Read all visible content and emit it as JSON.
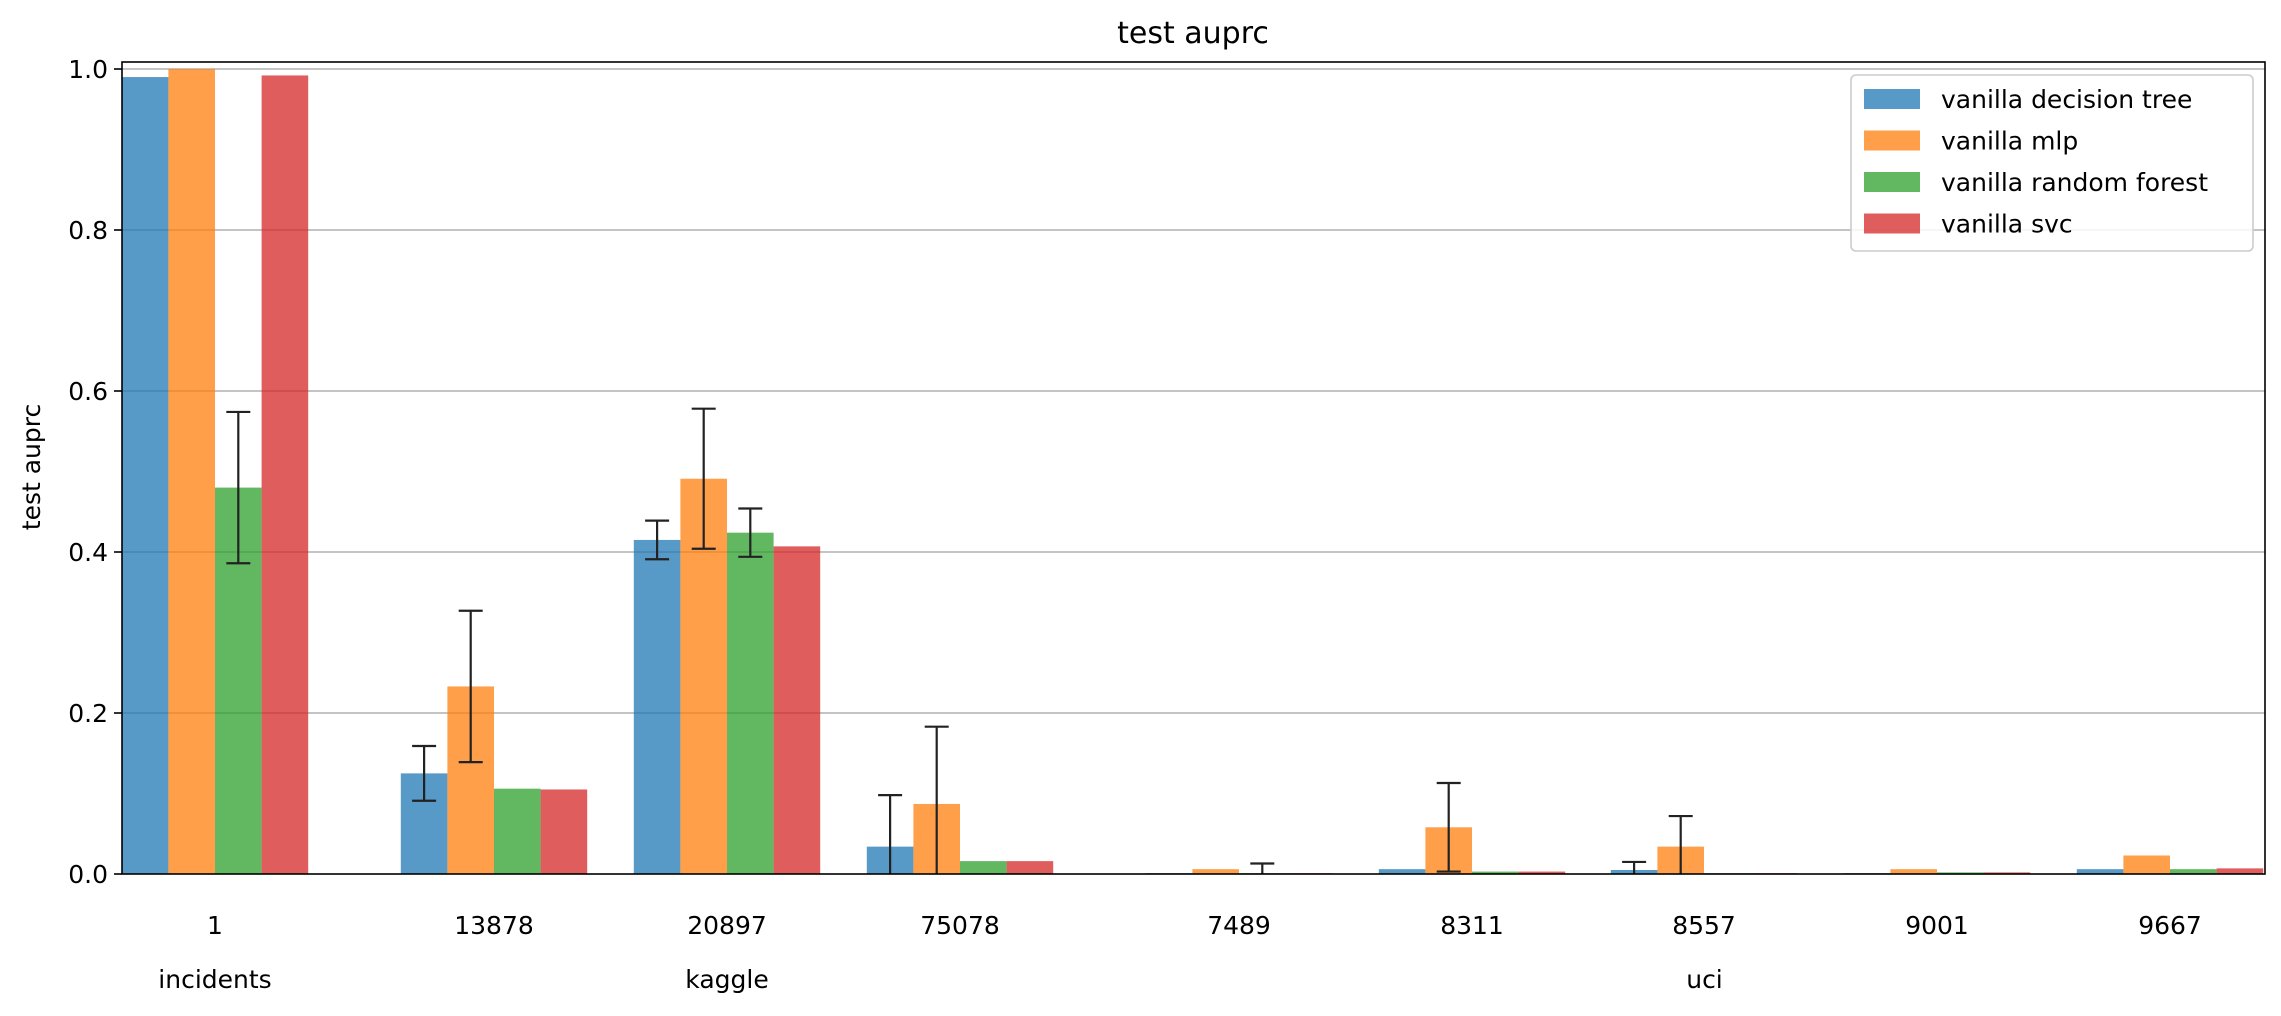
{
  "chart_data": {
    "type": "bar",
    "title": "test auprc",
    "ylabel": "test auprc",
    "xlabel": "",
    "ylim": [
      0,
      1.0
    ],
    "yticks": [
      "0.0",
      "0.2",
      "0.4",
      "0.6",
      "0.8",
      "1.0"
    ],
    "grid": "horizontal",
    "legend_position": "top-right",
    "categories": [
      "1",
      "13878",
      "20897",
      "75078",
      "7489",
      "8311",
      "8557",
      "9001",
      "9667"
    ],
    "groups": [
      {
        "label": "incidents",
        "from": 0,
        "to": 0
      },
      {
        "label": "kaggle",
        "from": 1,
        "to": 3
      },
      {
        "label": "uci",
        "from": 4,
        "to": 8
      }
    ],
    "series": [
      {
        "name": "vanilla decision tree",
        "color": "#1f77b4",
        "values": [
          0.99,
          0.125,
          0.415,
          0.034,
          0.001,
          0.006,
          0.005,
          0.001,
          0.006
        ],
        "errors": [
          null,
          0.034,
          0.024,
          0.064,
          null,
          null,
          0.01,
          null,
          null
        ]
      },
      {
        "name": "vanilla mlp",
        "color": "#ff7f0e",
        "values": [
          1.0,
          0.233,
          0.491,
          0.087,
          0.006,
          0.058,
          0.034,
          0.006,
          0.023
        ],
        "errors": [
          null,
          0.094,
          0.087,
          0.096,
          null,
          0.055,
          0.038,
          null,
          null
        ]
      },
      {
        "name": "vanilla random forest",
        "color": "#2ca02c",
        "values": [
          0.48,
          0.106,
          0.424,
          0.016,
          0.001,
          0.003,
          0.001,
          0.002,
          0.006
        ],
        "errors": [
          0.094,
          null,
          0.03,
          null,
          0.012,
          null,
          null,
          null,
          null
        ]
      },
      {
        "name": "vanilla svc",
        "color": "#d62728",
        "values": [
          0.992,
          0.105,
          0.407,
          0.016,
          0.001,
          0.003,
          0.001,
          0.002,
          0.007
        ],
        "errors": [
          null,
          null,
          null,
          null,
          null,
          null,
          null,
          null,
          null
        ]
      }
    ]
  }
}
